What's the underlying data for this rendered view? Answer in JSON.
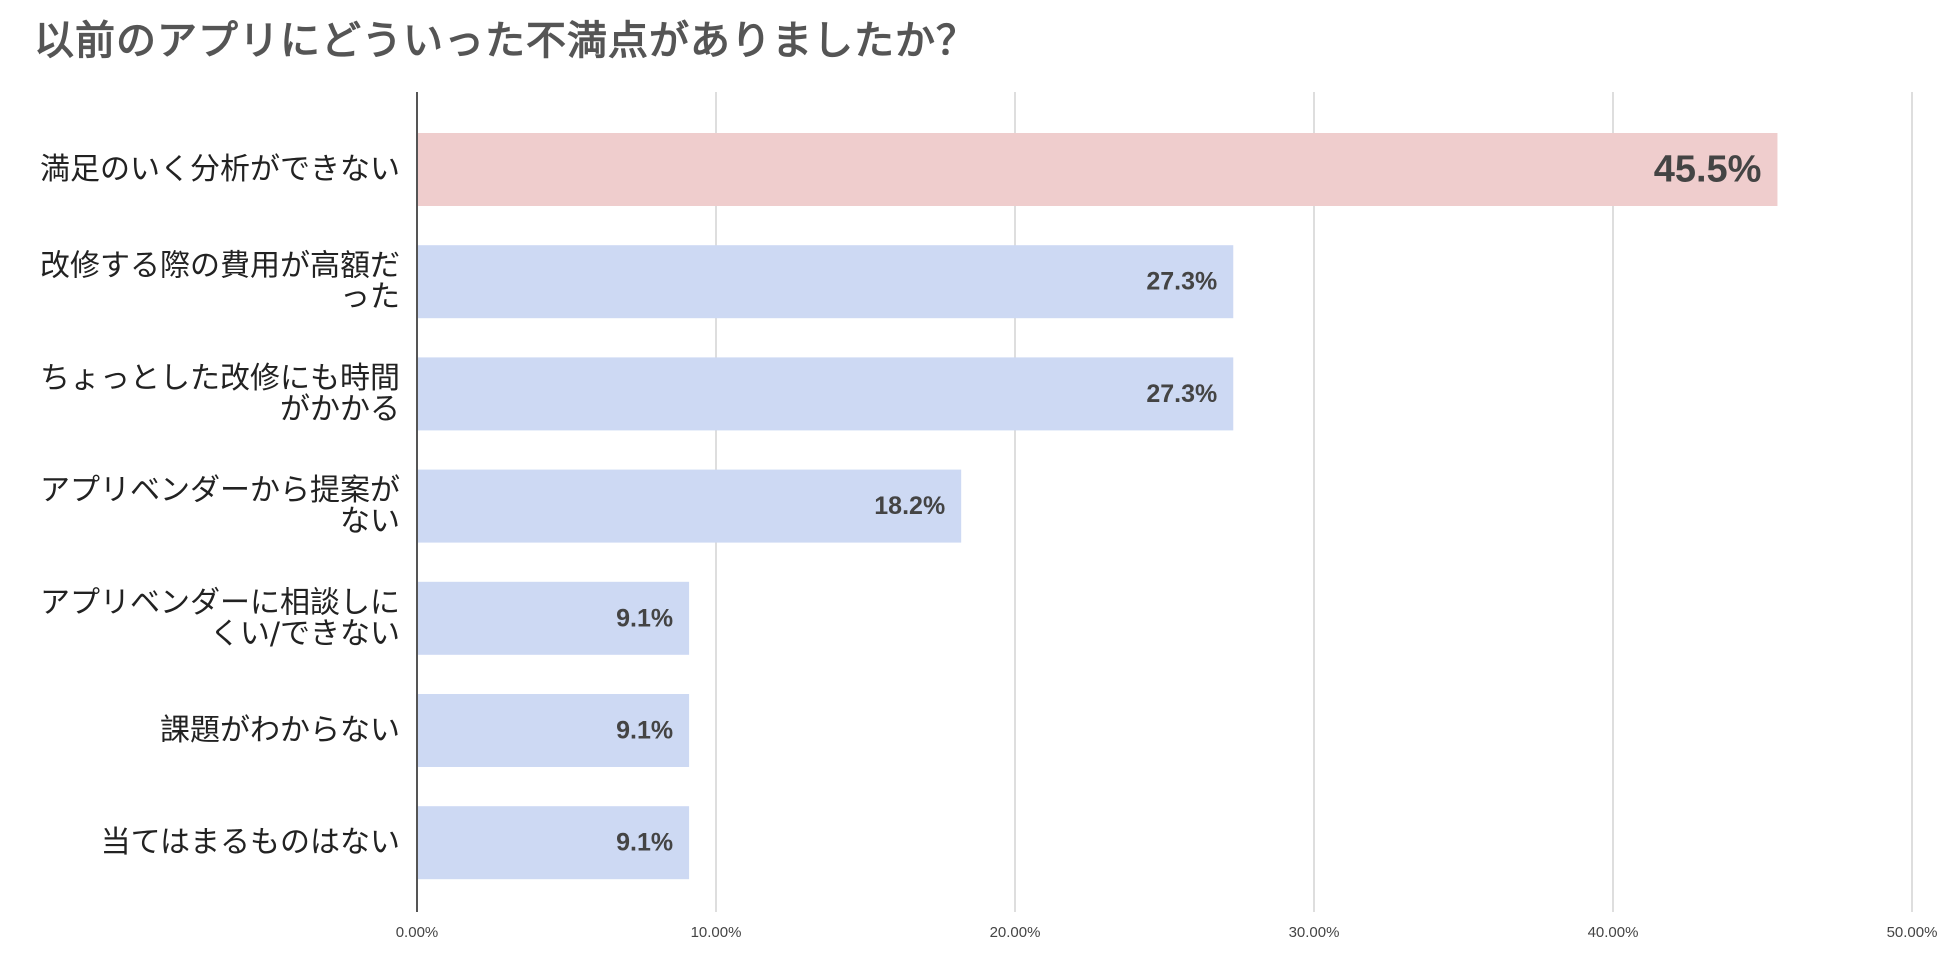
{
  "chart_data": {
    "type": "bar",
    "orientation": "horizontal",
    "title": "以前のアプリにどういった不満点がありましたか？",
    "categories": [
      [
        "満足のいく分析ができない"
      ],
      [
        "改修する際の費用が高額だ",
        "った"
      ],
      [
        "ちょっとした改修にも時間",
        "がかかる"
      ],
      [
        "アプリベンダーから提案が",
        "ない"
      ],
      [
        "アプリベンダーに相談しに",
        "くい/できない"
      ],
      [
        "課題がわからない"
      ],
      [
        "当てはまるものはない"
      ]
    ],
    "values": [
      45.5,
      27.3,
      27.3,
      18.2,
      9.1,
      9.1,
      9.1
    ],
    "value_labels": [
      "45.5%",
      "27.3%",
      "27.3%",
      "18.2%",
      "9.1%",
      "9.1%",
      "9.1%"
    ],
    "highlight_index": 0,
    "xlim": [
      0,
      50
    ],
    "xticks": [
      0,
      10,
      20,
      30,
      40,
      50
    ],
    "xtick_labels": [
      "0.00%",
      "10.00%",
      "20.00%",
      "30.00%",
      "40.00%",
      "50.00%"
    ],
    "xlabel": "",
    "ylabel": "",
    "grid": true,
    "legend": "none",
    "colors": {
      "highlight_bar": "#efcdcd",
      "bar": "#cdd9f3",
      "gridline": "#d3d3d3",
      "axis": "#555555"
    }
  }
}
